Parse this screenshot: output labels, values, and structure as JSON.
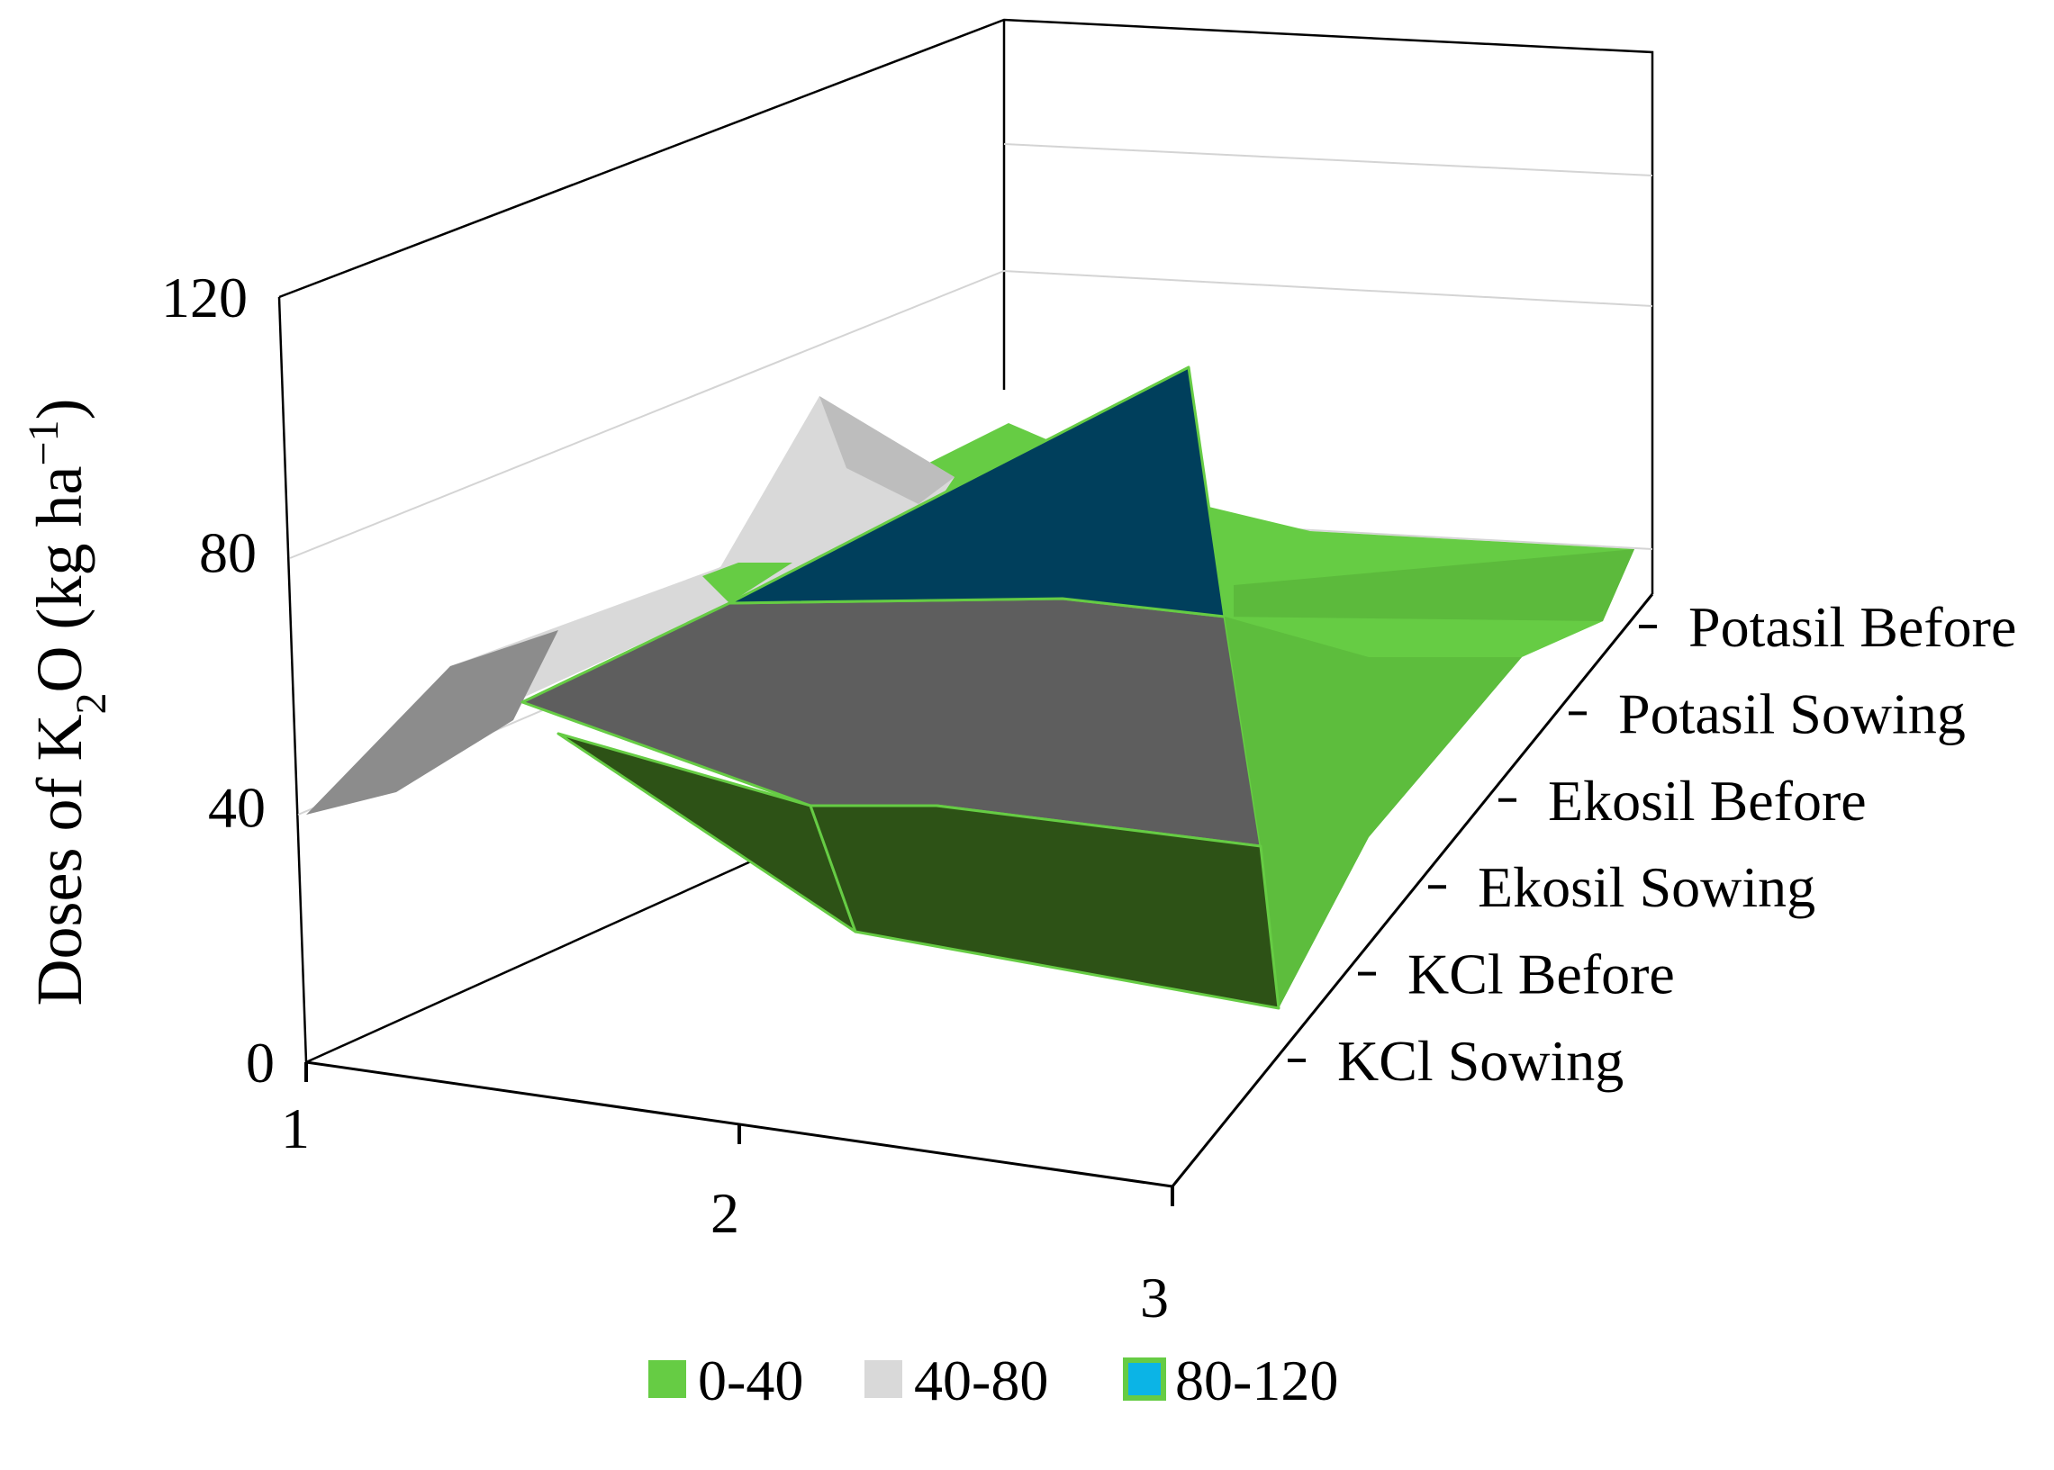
{
  "chart_data": {
    "type": "surface",
    "title": "",
    "ylabel_parts": {
      "pre": "Doses of K",
      "sub": "2",
      "mid": "O (kg ha",
      "sup": "−1",
      "post": ")"
    },
    "z_ticks": [
      "0",
      "40",
      "80",
      "120"
    ],
    "z_range": [
      0,
      120
    ],
    "x_ticks": [
      "1",
      "2",
      "3"
    ],
    "categories": [
      "KCl Sowing",
      "KCl Before",
      "Ekosil Sowing",
      "Ekosil Before",
      "Potasil Sowing",
      "Potasil Before"
    ],
    "bands": [
      {
        "name": "0-40",
        "color": "#66cc44"
      },
      {
        "name": "40-80",
        "color": "#d9d9d9"
      },
      {
        "name": "80-120",
        "color": "#0bb4e6"
      }
    ],
    "surface_colors": {
      "low": "#66cc44",
      "low_dark": "#2d5216",
      "mid": "#5e5e5e",
      "mid_light": "#d9d9d9",
      "high": "#003f5c"
    }
  }
}
